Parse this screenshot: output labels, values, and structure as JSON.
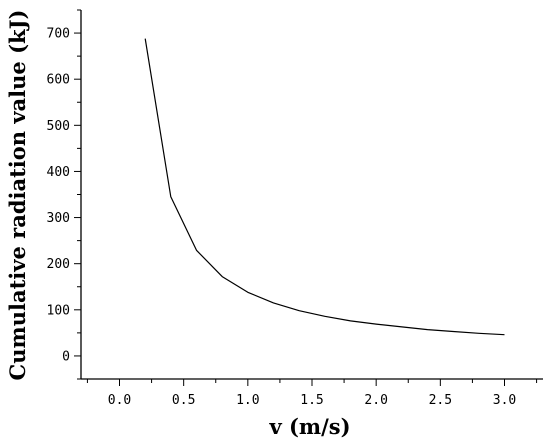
{
  "chart_data": {
    "type": "line",
    "title": "",
    "xlabel": "v (m/s)",
    "ylabel": "Cumulative radiation value (kJ)",
    "xlim": [
      -0.3,
      3.3
    ],
    "ylim": [
      -50,
      750
    ],
    "xticks": [
      0.0,
      0.5,
      1.0,
      1.5,
      2.0,
      2.5,
      3.0
    ],
    "xtick_labels": [
      "0.0",
      "0.5",
      "1.0",
      "1.5",
      "2.0",
      "2.5",
      "3.0"
    ],
    "yticks": [
      0,
      100,
      200,
      300,
      400,
      500,
      600,
      700
    ],
    "ytick_labels": [
      "0",
      "100",
      "200",
      "300",
      "400",
      "500",
      "600",
      "700"
    ],
    "grid": false,
    "legend": "none",
    "colors": {
      "line": "#000000",
      "axis": "#000000"
    },
    "series": [
      {
        "x": [
          0.2,
          0.4,
          0.6,
          0.8,
          1.0,
          1.2,
          1.4,
          1.6,
          1.8,
          2.0,
          2.2,
          2.4,
          2.6,
          2.8,
          3.0
        ],
        "values": [
          688,
          345,
          229,
          172,
          138,
          115,
          98,
          86,
          76,
          69,
          63,
          57,
          53,
          49,
          46
        ]
      }
    ]
  }
}
